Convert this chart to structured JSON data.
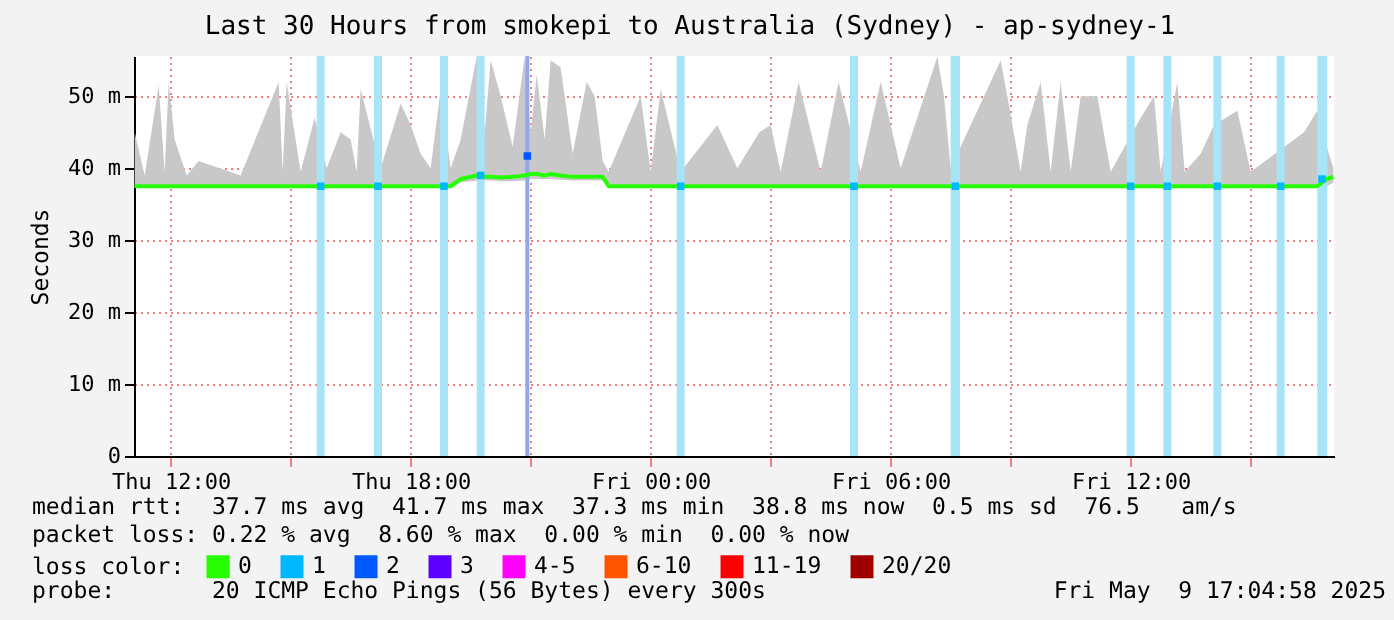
{
  "chart_data": {
    "type": "line",
    "title": "Last 30 Hours from smokepi to Australia (Sydney) - ap-sydney-1",
    "ylabel": "Seconds",
    "legend_title": "loss color:",
    "legend": "bottom",
    "grid": true,
    "xlim": [
      "2025-05-08T11:05",
      "2025-05-09T17:05"
    ],
    "xticks": [
      {
        "value": "2025-05-08T12:00",
        "label": "Thu 12:00"
      },
      {
        "value": "2025-05-08T15:00",
        "label": null
      },
      {
        "value": "2025-05-08T18:00",
        "label": "Thu 18:00"
      },
      {
        "value": "2025-05-08T21:00",
        "label": null
      },
      {
        "value": "2025-05-09T00:00",
        "label": "Fri 00:00"
      },
      {
        "value": "2025-05-09T03:00",
        "label": null
      },
      {
        "value": "2025-05-09T06:00",
        "label": "Fri 06:00"
      },
      {
        "value": "2025-05-09T09:00",
        "label": null
      },
      {
        "value": "2025-05-09T12:00",
        "label": "Fri 12:00"
      },
      {
        "value": "2025-05-09T15:00",
        "label": null
      }
    ],
    "ylim": [
      0,
      55.6
    ],
    "yticks": [
      0,
      {
        "value": 10,
        "label": "10 m"
      },
      {
        "value": 20,
        "label": "20 m"
      },
      {
        "value": 30,
        "label": "30 m"
      },
      {
        "value": 40,
        "label": "40 m"
      },
      {
        "value": 50,
        "label": "50 m"
      }
    ],
    "series": [
      {
        "name": "0",
        "color": "#26ff00",
        "x": [
          "2025-05-08T11:06",
          "2025-05-08T11:21",
          "2025-05-08T11:42",
          "2025-05-08T11:51",
          "2025-05-08T11:57",
          "2025-05-08T12:06",
          "2025-05-08T12:24",
          "2025-05-08T12:42",
          "2025-05-08T13:45",
          "2025-05-08T14:42",
          "2025-05-08T14:48",
          "2025-05-08T14:54",
          "2025-05-08T15:15",
          "2025-05-08T15:36",
          "2025-05-08T15:54",
          "2025-05-08T16:15",
          "2025-05-08T16:30",
          "2025-05-08T16:39",
          "2025-05-08T16:45",
          "2025-05-08T17:15",
          "2025-05-08T17:45",
          "2025-05-08T18:00",
          "2025-05-08T18:15",
          "2025-05-08T18:30",
          "2025-05-08T18:45",
          "2025-05-08T19:00",
          "2025-05-08T19:15",
          "2025-05-08T19:39",
          "2025-05-08T19:51",
          "2025-05-08T20:00",
          "2025-05-08T20:15",
          "2025-05-08T20:33",
          "2025-05-08T20:51",
          "2025-05-08T21:00",
          "2025-05-08T21:09",
          "2025-05-08T21:21",
          "2025-05-08T21:30",
          "2025-05-08T21:45",
          "2025-05-08T22:03",
          "2025-05-08T22:24",
          "2025-05-08T22:36",
          "2025-05-08T22:48",
          "2025-05-08T22:57",
          "2025-05-08T23:45",
          "2025-05-09T00:00",
          "2025-05-09T00:15",
          "2025-05-09T00:45",
          "2025-05-09T01:40",
          "2025-05-09T02:10",
          "2025-05-09T02:43",
          "2025-05-09T03:00",
          "2025-05-09T03:15",
          "2025-05-09T03:42",
          "2025-05-09T04:15",
          "2025-05-09T04:42",
          "2025-05-09T05:15",
          "2025-05-09T05:45",
          "2025-05-09T06:15",
          "2025-05-09T07:10",
          "2025-05-09T07:20",
          "2025-05-09T07:30",
          "2025-05-09T08:45",
          "2025-05-09T08:55",
          "2025-05-09T09:15",
          "2025-05-09T09:25",
          "2025-05-09T09:45",
          "2025-05-09T10:00",
          "2025-05-09T10:15",
          "2025-05-09T10:30",
          "2025-05-09T10:45",
          "2025-05-09T11:10",
          "2025-05-09T11:30",
          "2025-05-09T12:15",
          "2025-05-09T12:35",
          "2025-05-09T12:45",
          "2025-05-09T13:10",
          "2025-05-09T13:21",
          "2025-05-09T13:45",
          "2025-05-09T14:05",
          "2025-05-09T14:40",
          "2025-05-09T15:00",
          "2025-05-09T16:20",
          "2025-05-09T16:40",
          "2025-05-09T16:54",
          "2025-05-09T17:04"
        ],
        "values": [
          37.5,
          37.5,
          37.5,
          37.5,
          37.5,
          37.5,
          37.5,
          37.5,
          37.5,
          37.5,
          37.5,
          37.5,
          37.5,
          37.5,
          37.5,
          37.5,
          37.5,
          37.5,
          37.5,
          37.5,
          37.5,
          37.5,
          37.5,
          37.5,
          37.5,
          37.5,
          38.5,
          39,
          38.8,
          38.8,
          38.7,
          38.8,
          39,
          39.2,
          39.2,
          39,
          39.2,
          39,
          38.8,
          38.8,
          38.8,
          38.8,
          37.5,
          37.5,
          37.5,
          37.5,
          37.5,
          37.5,
          37.5,
          37.5,
          37.5,
          37.5,
          37.5,
          37.5,
          37.5,
          37.5,
          37.5,
          37.5,
          37.5,
          37.5,
          37.5,
          37.5,
          37.5,
          37.5,
          37.5,
          37.5,
          37.5,
          37.5,
          37.5,
          37.5,
          37.5,
          37.5,
          37.5,
          37.5,
          37.5,
          37.5,
          37.5,
          37.5,
          37.5,
          37.5,
          37.5,
          37.5,
          37.5,
          38.5,
          38.8
        ],
        "lower": [
          37.3,
          37.3,
          37.3,
          37.3,
          37.3,
          37.3,
          37.3,
          37.3,
          37.3,
          37.3,
          37.3,
          37.3,
          37.3,
          37.3,
          37.3,
          37.3,
          37.3,
          37.3,
          37.3,
          37.3,
          37.3,
          37.3,
          37.3,
          37.3,
          37.3,
          37.3,
          38,
          38.3,
          38.3,
          38.3,
          38.2,
          38.2,
          38.3,
          38.5,
          38.5,
          38.5,
          38.5,
          38.4,
          38.3,
          38.3,
          38.3,
          38.3,
          37.3,
          37.3,
          37.3,
          37.3,
          37.3,
          37.3,
          37.3,
          37.3,
          37.3,
          37.3,
          37.3,
          37.3,
          37.3,
          37.3,
          37.3,
          37.3,
          37.3,
          37.3,
          37.3,
          37.3,
          37.3,
          37.3,
          37.3,
          37.3,
          37.3,
          37.3,
          37.3,
          37.3,
          37.3,
          37.3,
          37.3,
          37.3,
          37.3,
          37.3,
          37.3,
          37.3,
          37.3,
          37.3,
          37.3,
          37.3,
          37.3,
          37.5,
          38
        ],
        "upper": [
          45,
          39,
          51.5,
          39.5,
          52,
          44,
          39,
          41,
          39,
          52,
          39.5,
          52,
          39.5,
          47,
          40,
          45,
          44,
          39.5,
          51,
          40,
          49,
          46,
          42,
          40,
          51,
          40,
          44,
          55.5,
          45,
          55,
          50,
          43,
          55.5,
          45,
          53,
          44,
          55,
          54,
          42,
          52,
          50,
          41,
          39.5,
          50,
          39.5,
          51,
          39.5,
          46,
          40,
          45,
          46,
          39.5,
          52,
          39.5,
          52,
          39.5,
          52,
          40,
          55.5,
          50,
          40,
          55,
          50,
          39.5,
          46,
          52,
          39.5,
          52,
          39.5,
          50,
          50,
          39.5,
          47,
          50,
          39.5,
          52,
          39.5,
          42,
          46,
          48,
          39.5,
          45,
          48,
          43,
          40
        ]
      },
      {
        "name": "1",
        "color": "#00b8ff",
        "type": "scatter",
        "marker": "square",
        "x": [
          "2025-05-08T15:45",
          "2025-05-08T17:11",
          "2025-05-08T18:50",
          "2025-05-08T19:45",
          "2025-05-09T00:45",
          "2025-05-09T05:05",
          "2025-05-09T07:37",
          "2025-05-09T12:00",
          "2025-05-09T12:55",
          "2025-05-09T14:10",
          "2025-05-09T15:45",
          "2025-05-09T16:47"
        ],
        "values": [
          37.5,
          37.5,
          37.5,
          39,
          37.5,
          37.5,
          37.5,
          37.5,
          37.5,
          37.5,
          37.5,
          38.5
        ]
      },
      {
        "name": "2",
        "color": "#0059ff",
        "type": "scatter",
        "marker": "square",
        "x": [
          "2025-05-08T20:55"
        ],
        "values": [
          41.7
        ]
      },
      {
        "name": "3",
        "color": "#5e00ff",
        "type": "scatter",
        "marker": "square"
      },
      {
        "name": "4-5",
        "color": "#ff00ff",
        "type": "scatter",
        "marker": "square"
      },
      {
        "name": "6-10",
        "color": "#ff5500",
        "type": "scatter",
        "marker": "square"
      },
      {
        "name": "11-19",
        "color": "#ff0000",
        "type": "scatter",
        "marker": "square"
      },
      {
        "name": "20/20",
        "color": "#a10000",
        "type": "scatter",
        "marker": "square"
      }
    ],
    "bands": [
      {
        "axis": "x",
        "from": "2025-05-08T15:39",
        "to": "2025-05-08T15:51",
        "color": "#a8e4f8"
      },
      {
        "axis": "x",
        "from": "2025-05-08T17:05",
        "to": "2025-05-08T17:17",
        "color": "#a8e4f8"
      },
      {
        "axis": "x",
        "from": "2025-05-08T18:44",
        "to": "2025-05-08T18:56",
        "color": "#a8e4f8"
      },
      {
        "axis": "x",
        "from": "2025-05-08T19:39",
        "to": "2025-05-08T19:51",
        "color": "#a8e4f8"
      },
      {
        "axis": "x",
        "from": "2025-05-08T20:52",
        "to": "2025-05-08T20:58",
        "color": "#8fa8f0"
      },
      {
        "axis": "x",
        "from": "2025-05-09T00:39",
        "to": "2025-05-09T00:51",
        "color": "#a8e4f8"
      },
      {
        "axis": "x",
        "from": "2025-05-09T04:59",
        "to": "2025-05-09T05:11",
        "color": "#a8e4f8"
      },
      {
        "axis": "x",
        "from": "2025-05-09T07:30",
        "to": "2025-05-09T07:44",
        "color": "#a8e4f8"
      },
      {
        "axis": "x",
        "from": "2025-05-09T11:54",
        "to": "2025-05-09T12:06",
        "color": "#a8e4f8"
      },
      {
        "axis": "x",
        "from": "2025-05-09T12:49",
        "to": "2025-05-09T13:01",
        "color": "#a8e4f8"
      },
      {
        "axis": "x",
        "from": "2025-05-09T14:04",
        "to": "2025-05-09T14:16",
        "color": "#a8e4f8"
      },
      {
        "axis": "x",
        "from": "2025-05-09T15:39",
        "to": "2025-05-09T15:51",
        "color": "#a8e4f8"
      },
      {
        "axis": "x",
        "from": "2025-05-09T16:40",
        "to": "2025-05-09T16:55",
        "color": "#a8e4f8"
      }
    ],
    "annotations": [
      "median rtt:  37.7 ms avg  41.7 ms max  37.3 ms min  38.8 ms now  0.5 ms sd  76.5   am/s",
      "packet loss: 0.22 % avg  8.60 % max  0.00 % min  0.00 % now",
      "probe:       20 ICMP Echo Pings (56 Bytes) every 300s",
      "Fri May  9 17:04:58 2025"
    ]
  }
}
